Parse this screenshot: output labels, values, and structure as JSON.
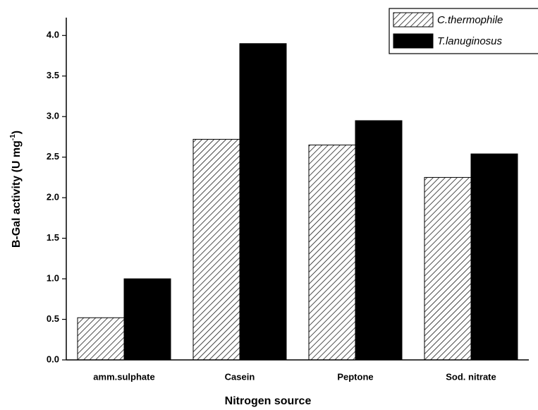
{
  "chart_data": {
    "type": "bar",
    "x_label": "Nitrogen source",
    "y_label": {
      "text": "B-Gal activity (U mg",
      "sup": "-1",
      "end": ")"
    },
    "categories": [
      "amm.sulphate",
      "Casein",
      "Peptone",
      "Sod. nitrate"
    ],
    "series": [
      {
        "name": "C.thermophile",
        "color": "#000000",
        "pattern": "hatch",
        "values": [
          0.52,
          2.72,
          2.65,
          2.25
        ]
      },
      {
        "name": "T.lanuginosus",
        "color": "#000000",
        "pattern": "solid",
        "values": [
          1.0,
          3.9,
          2.95,
          2.54
        ]
      }
    ],
    "ylim": [
      0,
      4.22
    ],
    "yticks": [
      {
        "value": 0,
        "label": "0.0"
      },
      0.5,
      {
        "value": 1,
        "label": "1.0"
      },
      1.5,
      {
        "value": 2,
        "label": "2.0"
      },
      2.5,
      {
        "value": 3,
        "label": "3.0"
      },
      3.5,
      {
        "value": 4,
        "label": "4.0"
      }
    ],
    "grid": false,
    "legend": "top-right"
  }
}
